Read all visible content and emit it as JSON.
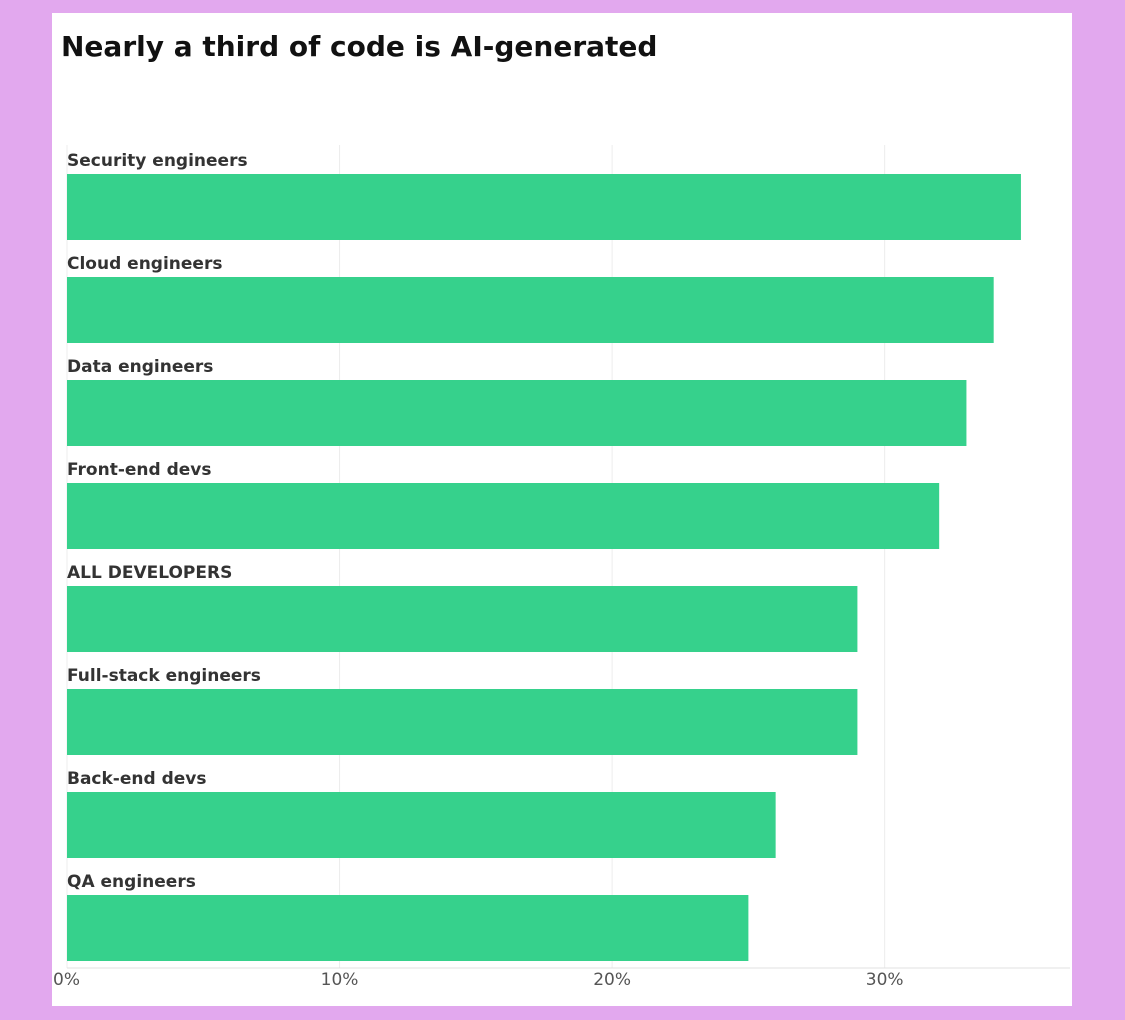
{
  "chart_data": {
    "type": "bar",
    "orientation": "horizontal",
    "title": "Nearly a third of code is AI-generated",
    "categories": [
      "Security engineers",
      "Cloud engineers",
      "Data engineers",
      "Front-end devs",
      "ALL DEVELOPERS",
      "Full-stack engineers",
      "Back-end devs",
      "QA engineers"
    ],
    "values": [
      35,
      34,
      33,
      32,
      29,
      29,
      26,
      25
    ],
    "color": "#36d18c",
    "xlim": [
      0,
      36.8
    ],
    "xticks": [
      {
        "value": 0,
        "label": "0%"
      },
      {
        "value": 10,
        "label": "10%"
      },
      {
        "value": 20,
        "label": "20%"
      },
      {
        "value": 30,
        "label": "30%"
      }
    ],
    "grid": true
  }
}
